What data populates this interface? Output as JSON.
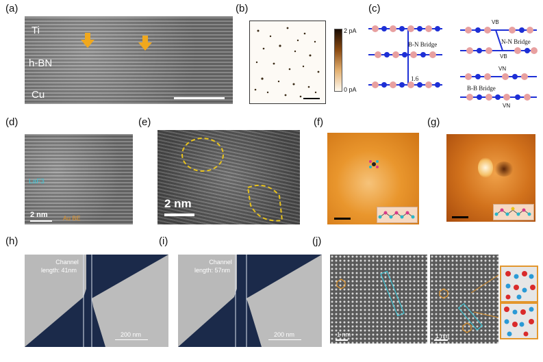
{
  "panels": {
    "a": {
      "label": "(a)",
      "layers": [
        "Ti",
        "h-BN",
        "Cu"
      ]
    },
    "b": {
      "label": "(b)",
      "colorbar_max": "2 pA",
      "colorbar_min": "0 pA"
    },
    "c": {
      "label": "(c)",
      "bridges": [
        "B-N Bridge",
        "N-N Bridge",
        "B-B Bridge"
      ],
      "distance": "1.6",
      "vacancies": [
        "VB",
        "VB",
        "VN",
        "VN"
      ]
    },
    "d": {
      "label": "(d)",
      "scale": "2 nm",
      "layer_text_1": "LaF3",
      "layer_text_2": "Au BE"
    },
    "e": {
      "label": "(e)",
      "scale": "2 nm"
    },
    "f": {
      "label": "(f)"
    },
    "g": {
      "label": "(g)"
    },
    "h": {
      "label": "(h)",
      "channel_line1": "Channel",
      "channel_line2": "length: 41nm",
      "scale": "200 nm"
    },
    "i": {
      "label": "(i)",
      "channel_line1": "Channel",
      "channel_line2": "length: 57nm",
      "scale": "200 nm"
    },
    "j": {
      "label": "(j)",
      "scale_left": "1 nm",
      "scale_right": "1 nm"
    }
  },
  "colors": {
    "arrow": "#f0a81e",
    "dashed": "#e7c21c",
    "boron": "#e8a0a0",
    "nitrogen": "#1d2fd6",
    "scale_white": "#ffffff"
  }
}
